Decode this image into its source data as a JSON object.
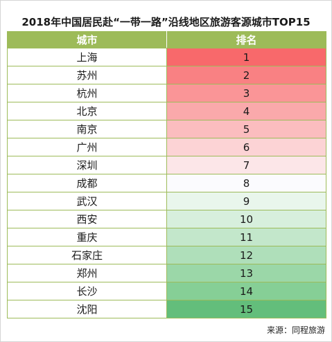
{
  "title": "2018年中国居民赴“一带一路”沿线地区旅游客源城市TOP15",
  "table": {
    "headers": {
      "city": "城市",
      "rank": "排名"
    },
    "rows": [
      {
        "city": "上海",
        "rank": "1",
        "color": "#f8696b"
      },
      {
        "city": "苏州",
        "rank": "2",
        "color": "#f98183"
      },
      {
        "city": "杭州",
        "rank": "3",
        "color": "#fa9597"
      },
      {
        "city": "北京",
        "rank": "4",
        "color": "#faa9ab"
      },
      {
        "city": "南京",
        "rank": "5",
        "color": "#fbbdbf"
      },
      {
        "city": "广州",
        "rank": "6",
        "color": "#fcd3d5"
      },
      {
        "city": "深圳",
        "rank": "7",
        "color": "#fce6e8"
      },
      {
        "city": "成都",
        "rank": "8",
        "color": "#fbfbfe"
      },
      {
        "city": "武汉",
        "rank": "9",
        "color": "#e9f6ec"
      },
      {
        "city": "西安",
        "rank": "10",
        "color": "#d7efdd"
      },
      {
        "city": "重庆",
        "rank": "11",
        "color": "#c3e7cb"
      },
      {
        "city": "石家庄",
        "rank": "12",
        "color": "#afdfba"
      },
      {
        "city": "郑州",
        "rank": "13",
        "color": "#9bd7a8"
      },
      {
        "city": "长沙",
        "rank": "14",
        "color": "#86cf96"
      },
      {
        "city": "沈阳",
        "rank": "15",
        "color": "#63be7b"
      }
    ]
  },
  "source": "来源：同程旅游"
}
